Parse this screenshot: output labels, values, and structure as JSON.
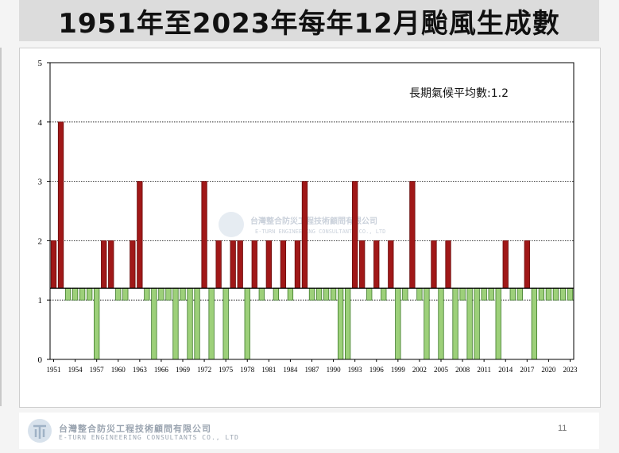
{
  "title": "1951年至2023年每年12月颱風生成數",
  "colors": {
    "above": "#a01818",
    "below": "#9dd07a",
    "below_stroke": "#3e7a2a",
    "baseline": "#000000"
  },
  "watermark": {
    "name": "台灣整合防災工程技術顧問有限公司",
    "english": "E-TURN ENGINEERING CONSULTANTS CO., LTD"
  },
  "footer": {
    "company_name": "台灣整合防災工程技術顧問有限公司",
    "company_english": "E-TURN ENGINEERING CONSULTANTS CO., LTD",
    "page_number": "11"
  },
  "chart_data": {
    "type": "bar",
    "title": "",
    "xlabel": "",
    "ylabel": "",
    "ylim": [
      0,
      5
    ],
    "yticks": [
      0,
      1,
      2,
      3,
      4,
      5
    ],
    "grid": true,
    "baseline_value": 1.2,
    "annotation": "長期氣候平均數:1.2",
    "x_tick_labels": [
      "1951",
      "1954",
      "1957",
      "1960",
      "1963",
      "1966",
      "1969",
      "1972",
      "1975",
      "1978",
      "1981",
      "1984",
      "1987",
      "1990",
      "1993",
      "1996",
      "1999",
      "2002",
      "2005",
      "2008",
      "2011",
      "2014",
      "2017",
      "2020",
      "2023"
    ],
    "years": [
      1951,
      1952,
      1953,
      1954,
      1955,
      1956,
      1957,
      1958,
      1959,
      1960,
      1961,
      1962,
      1963,
      1964,
      1965,
      1966,
      1967,
      1968,
      1969,
      1970,
      1971,
      1972,
      1973,
      1974,
      1975,
      1976,
      1977,
      1978,
      1979,
      1980,
      1981,
      1982,
      1983,
      1984,
      1985,
      1986,
      1987,
      1988,
      1989,
      1990,
      1991,
      1992,
      1993,
      1994,
      1995,
      1996,
      1997,
      1998,
      1999,
      2000,
      2001,
      2002,
      2003,
      2004,
      2005,
      2006,
      2007,
      2008,
      2009,
      2010,
      2011,
      2012,
      2013,
      2014,
      2015,
      2016,
      2017,
      2018,
      2019,
      2020,
      2021,
      2022,
      2023
    ],
    "values": [
      2,
      4,
      1,
      1,
      1,
      1,
      0,
      2,
      2,
      1,
      1,
      2,
      3,
      1,
      0,
      1,
      1,
      0,
      1,
      0,
      0,
      3,
      0,
      2,
      0,
      2,
      2,
      0,
      2,
      1,
      2,
      1,
      2,
      1,
      2,
      3,
      1,
      1,
      1,
      1,
      0,
      0,
      3,
      2,
      1,
      2,
      1,
      2,
      0,
      1,
      3,
      1,
      0,
      2,
      0,
      2,
      0,
      1,
      0,
      0,
      1,
      1,
      0,
      2,
      1,
      1,
      2,
      0,
      1,
      1,
      1,
      1,
      1
    ]
  }
}
